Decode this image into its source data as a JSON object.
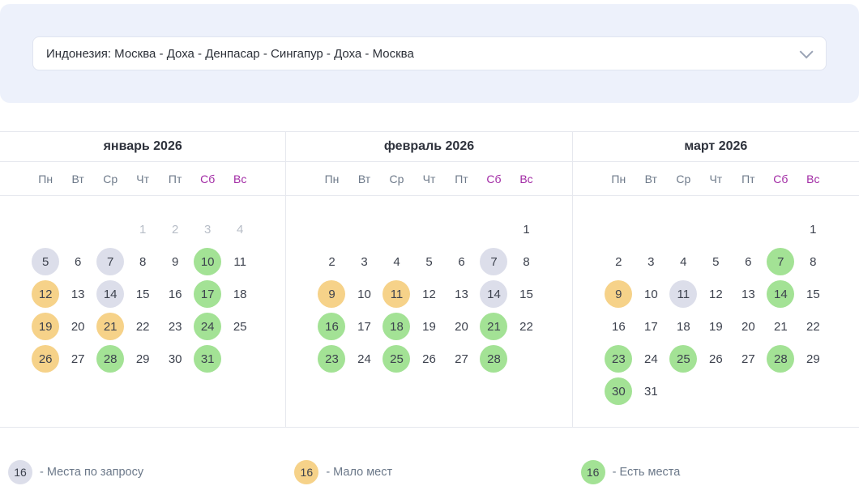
{
  "colors": {
    "panel_bg": "#edf1fb",
    "accent_purple": "#a22ba5",
    "status_request": "#dcdeea",
    "status_few": "#f6d289",
    "status_available": "#a3e295"
  },
  "route_selector": {
    "value": "Индонезия: Москва - Доха - Денпасар - Сингапур - Доха - Москва"
  },
  "weekdays": [
    "Пн",
    "Вт",
    "Ср",
    "Чт",
    "Пт",
    "Сб",
    "Вс"
  ],
  "months": [
    {
      "title": "январь 2026",
      "weeks": [
        [
          null,
          null,
          null,
          {
            "d": "1",
            "s": "muted"
          },
          {
            "d": "2",
            "s": "muted"
          },
          {
            "d": "3",
            "s": "muted"
          },
          {
            "d": "4",
            "s": "muted"
          }
        ],
        [
          {
            "d": "5",
            "s": "request"
          },
          {
            "d": "6",
            "s": "plain"
          },
          {
            "d": "7",
            "s": "request"
          },
          {
            "d": "8",
            "s": "plain"
          },
          {
            "d": "9",
            "s": "plain"
          },
          {
            "d": "10",
            "s": "available"
          },
          {
            "d": "11",
            "s": "plain"
          }
        ],
        [
          {
            "d": "12",
            "s": "few"
          },
          {
            "d": "13",
            "s": "plain"
          },
          {
            "d": "14",
            "s": "request"
          },
          {
            "d": "15",
            "s": "plain"
          },
          {
            "d": "16",
            "s": "plain"
          },
          {
            "d": "17",
            "s": "available"
          },
          {
            "d": "18",
            "s": "plain"
          }
        ],
        [
          {
            "d": "19",
            "s": "few"
          },
          {
            "d": "20",
            "s": "plain"
          },
          {
            "d": "21",
            "s": "few"
          },
          {
            "d": "22",
            "s": "plain"
          },
          {
            "d": "23",
            "s": "plain"
          },
          {
            "d": "24",
            "s": "available"
          },
          {
            "d": "25",
            "s": "plain"
          }
        ],
        [
          {
            "d": "26",
            "s": "few"
          },
          {
            "d": "27",
            "s": "plain"
          },
          {
            "d": "28",
            "s": "available"
          },
          {
            "d": "29",
            "s": "plain"
          },
          {
            "d": "30",
            "s": "plain"
          },
          {
            "d": "31",
            "s": "available"
          },
          null
        ]
      ]
    },
    {
      "title": "февраль 2026",
      "weeks": [
        [
          null,
          null,
          null,
          null,
          null,
          null,
          {
            "d": "1",
            "s": "plain"
          }
        ],
        [
          {
            "d": "2",
            "s": "plain"
          },
          {
            "d": "3",
            "s": "plain"
          },
          {
            "d": "4",
            "s": "plain"
          },
          {
            "d": "5",
            "s": "plain"
          },
          {
            "d": "6",
            "s": "plain"
          },
          {
            "d": "7",
            "s": "request"
          },
          {
            "d": "8",
            "s": "plain"
          }
        ],
        [
          {
            "d": "9",
            "s": "few"
          },
          {
            "d": "10",
            "s": "plain"
          },
          {
            "d": "11",
            "s": "few"
          },
          {
            "d": "12",
            "s": "plain"
          },
          {
            "d": "13",
            "s": "plain"
          },
          {
            "d": "14",
            "s": "request"
          },
          {
            "d": "15",
            "s": "plain"
          }
        ],
        [
          {
            "d": "16",
            "s": "available"
          },
          {
            "d": "17",
            "s": "plain"
          },
          {
            "d": "18",
            "s": "available"
          },
          {
            "d": "19",
            "s": "plain"
          },
          {
            "d": "20",
            "s": "plain"
          },
          {
            "d": "21",
            "s": "available"
          },
          {
            "d": "22",
            "s": "plain"
          }
        ],
        [
          {
            "d": "23",
            "s": "available"
          },
          {
            "d": "24",
            "s": "plain"
          },
          {
            "d": "25",
            "s": "available"
          },
          {
            "d": "26",
            "s": "plain"
          },
          {
            "d": "27",
            "s": "plain"
          },
          {
            "d": "28",
            "s": "available"
          },
          null
        ]
      ]
    },
    {
      "title": "март 2026",
      "weeks": [
        [
          null,
          null,
          null,
          null,
          null,
          null,
          {
            "d": "1",
            "s": "plain"
          }
        ],
        [
          {
            "d": "2",
            "s": "plain"
          },
          {
            "d": "3",
            "s": "plain"
          },
          {
            "d": "4",
            "s": "plain"
          },
          {
            "d": "5",
            "s": "plain"
          },
          {
            "d": "6",
            "s": "plain"
          },
          {
            "d": "7",
            "s": "available"
          },
          {
            "d": "8",
            "s": "plain"
          }
        ],
        [
          {
            "d": "9",
            "s": "few"
          },
          {
            "d": "10",
            "s": "plain"
          },
          {
            "d": "11",
            "s": "request"
          },
          {
            "d": "12",
            "s": "plain"
          },
          {
            "d": "13",
            "s": "plain"
          },
          {
            "d": "14",
            "s": "available"
          },
          {
            "d": "15",
            "s": "plain"
          }
        ],
        [
          {
            "d": "16",
            "s": "plain"
          },
          {
            "d": "17",
            "s": "plain"
          },
          {
            "d": "18",
            "s": "plain"
          },
          {
            "d": "19",
            "s": "plain"
          },
          {
            "d": "20",
            "s": "plain"
          },
          {
            "d": "21",
            "s": "plain"
          },
          {
            "d": "22",
            "s": "plain"
          }
        ],
        [
          {
            "d": "23",
            "s": "available"
          },
          {
            "d": "24",
            "s": "plain"
          },
          {
            "d": "25",
            "s": "available"
          },
          {
            "d": "26",
            "s": "plain"
          },
          {
            "d": "27",
            "s": "plain"
          },
          {
            "d": "28",
            "s": "available"
          },
          {
            "d": "29",
            "s": "plain"
          }
        ],
        [
          {
            "d": "30",
            "s": "available"
          },
          {
            "d": "31",
            "s": "plain"
          },
          null,
          null,
          null,
          null,
          null
        ]
      ]
    }
  ],
  "legend": [
    {
      "badge": "16",
      "label": "- Места по запросу",
      "type": "request"
    },
    {
      "badge": "16",
      "label": "- Мало мест",
      "type": "few"
    },
    {
      "badge": "16",
      "label": "- Есть места",
      "type": "available"
    }
  ]
}
